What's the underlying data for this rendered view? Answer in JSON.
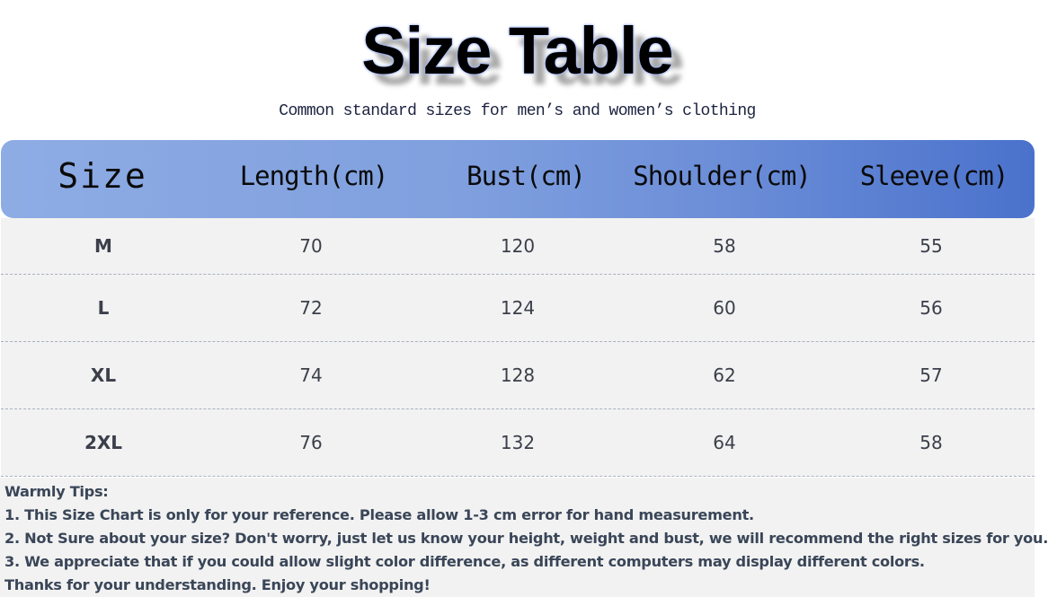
{
  "title": "Size Table",
  "subtitle": "Common standard sizes for men’s and women’s clothing",
  "colors": {
    "header_gradient_start": "#8eace4",
    "header_gradient_end": "#4a72cc",
    "row_bg": "#f2f2f2",
    "text": "#3b3f4a"
  },
  "table": {
    "headers": [
      "Size",
      "Length(cm)",
      "Bust(cm)",
      "Shoulder(cm)",
      "Sleeve(cm)"
    ],
    "rows": [
      [
        "M",
        "70",
        "120",
        "58",
        "55"
      ],
      [
        "L",
        "72",
        "124",
        "60",
        "56"
      ],
      [
        "XL",
        "74",
        "128",
        "62",
        "57"
      ],
      [
        "2XL",
        "76",
        "132",
        "64",
        "58"
      ]
    ]
  },
  "tips": {
    "heading": "Warmly Tips:",
    "lines": [
      "1. This Size Chart is only for your reference. Please allow 1-3 cm error for hand measurement.",
      "2. Not Sure about your size? Don't worry, just let us know your height, weight and bust, we will recommend the right sizes for you.",
      "3. We appreciate that if you could allow slight color difference, as different computers may display different colors.",
      "Thanks for your understanding. Enjoy your shopping!"
    ]
  }
}
